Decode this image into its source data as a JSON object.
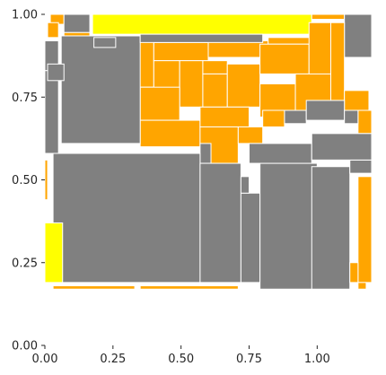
{
  "chart_data": {
    "type": "heatmap",
    "title": "",
    "xlabel": "",
    "ylabel": "",
    "xlim": [
      0,
      1.2
    ],
    "ylim": [
      0,
      1.0
    ],
    "x_ticks": [
      0.0,
      0.25,
      0.5,
      0.75,
      1.0
    ],
    "x_tick_labels": [
      "0.00",
      "0.25",
      "0.50",
      "0.75",
      "1.00"
    ],
    "y_ticks": [
      0.0,
      0.25,
      0.5,
      0.75,
      1.0
    ],
    "y_tick_labels": [
      "0.00",
      "0.25",
      "0.50",
      "0.75",
      "1.00"
    ],
    "grid": false,
    "legend": "none",
    "colors": {
      "gray": "#808080",
      "orange": "#FFA500",
      "yellow": "#FFFF00",
      "border": "#FFFFFF"
    },
    "regions": [
      {
        "c": "orange",
        "x0": 0.02,
        "x1": 0.07,
        "y0": 0.97,
        "y1": 1.0
      },
      {
        "c": "gray",
        "x0": 0.07,
        "x1": 0.165,
        "y0": 0.945,
        "y1": 1.0
      },
      {
        "c": "orange",
        "x0": 0.07,
        "x1": 0.165,
        "y0": 0.93,
        "y1": 0.945
      },
      {
        "c": "yellow",
        "x0": 0.175,
        "x1": 0.98,
        "y0": 0.94,
        "y1": 1.0
      },
      {
        "c": "orange",
        "x0": 0.98,
        "x1": 1.1,
        "y0": 0.985,
        "y1": 1.0
      },
      {
        "c": "gray",
        "x0": 1.1,
        "x1": 1.2,
        "y0": 0.87,
        "y1": 1.0
      },
      {
        "c": "orange",
        "x0": 0.01,
        "x1": 0.05,
        "y0": 0.93,
        "y1": 0.975
      },
      {
        "c": "orange",
        "x0": 0.16,
        "x1": 0.27,
        "y0": 0.78,
        "y1": 0.93
      },
      {
        "c": "orange",
        "x0": 0.27,
        "x1": 0.4,
        "y0": 0.78,
        "y1": 0.92
      },
      {
        "c": "orange",
        "x0": 0.4,
        "x1": 0.6,
        "y0": 0.86,
        "y1": 0.915
      },
      {
        "c": "orange",
        "x0": 0.6,
        "x1": 0.82,
        "y0": 0.87,
        "y1": 0.92
      },
      {
        "c": "orange",
        "x0": 0.82,
        "x1": 1.0,
        "y0": 0.91,
        "y1": 0.93
      },
      {
        "c": "orange",
        "x0": 0.4,
        "x1": 0.495,
        "y0": 0.72,
        "y1": 0.86
      },
      {
        "c": "orange",
        "x0": 0.495,
        "x1": 0.58,
        "y0": 0.72,
        "y1": 0.86
      },
      {
        "c": "orange",
        "x0": 0.58,
        "x1": 0.67,
        "y0": 0.82,
        "y1": 0.86
      },
      {
        "c": "orange",
        "x0": 0.58,
        "x1": 0.67,
        "y0": 0.72,
        "y1": 0.82
      },
      {
        "c": "orange",
        "x0": 0.67,
        "x1": 0.79,
        "y0": 0.72,
        "y1": 0.85
      },
      {
        "c": "orange",
        "x0": 0.79,
        "x1": 0.97,
        "y0": 0.82,
        "y1": 0.91
      },
      {
        "c": "orange",
        "x0": 0.97,
        "x1": 1.05,
        "y0": 0.72,
        "y1": 0.975
      },
      {
        "c": "orange",
        "x0": 1.05,
        "x1": 1.1,
        "y0": 0.74,
        "y1": 0.975
      },
      {
        "c": "orange",
        "x0": 0.35,
        "x1": 0.495,
        "y0": 0.68,
        "y1": 0.78
      },
      {
        "c": "orange",
        "x0": 0.35,
        "x1": 0.57,
        "y0": 0.6,
        "y1": 0.68
      },
      {
        "c": "orange",
        "x0": 0.57,
        "x1": 0.75,
        "y0": 0.66,
        "y1": 0.72
      },
      {
        "c": "orange",
        "x0": 0.79,
        "x1": 0.92,
        "y0": 0.69,
        "y1": 0.79
      },
      {
        "c": "orange",
        "x0": 0.92,
        "x1": 1.05,
        "y0": 0.7,
        "y1": 0.82
      },
      {
        "c": "orange",
        "x0": 0.57,
        "x1": 0.71,
        "y0": 0.55,
        "y1": 0.66
      },
      {
        "c": "orange",
        "x0": 0.71,
        "x1": 0.8,
        "y0": 0.61,
        "y1": 0.66
      },
      {
        "c": "orange",
        "x0": 0.8,
        "x1": 0.88,
        "y0": 0.66,
        "y1": 0.71
      },
      {
        "c": "orange",
        "x0": 1.1,
        "x1": 1.19,
        "y0": 0.71,
        "y1": 0.77
      },
      {
        "c": "orange",
        "x0": 1.15,
        "x1": 1.2,
        "y0": 0.64,
        "y1": 0.71
      },
      {
        "c": "gray",
        "x0": 0.06,
        "x1": 0.35,
        "y0": 0.61,
        "y1": 0.935
      },
      {
        "c": "gray",
        "x0": 0.35,
        "x1": 0.8,
        "y0": 0.915,
        "y1": 0.94
      },
      {
        "c": "gray",
        "x0": 0.18,
        "x1": 0.26,
        "y0": 0.9,
        "y1": 0.93
      },
      {
        "c": "gray",
        "x0": 0.0,
        "x1": 0.05,
        "y0": 0.83,
        "y1": 0.92
      },
      {
        "c": "gray",
        "x0": 0.0,
        "x1": 0.05,
        "y0": 0.58,
        "y1": 0.83
      },
      {
        "c": "gray",
        "x0": 0.01,
        "x1": 0.07,
        "y0": 0.8,
        "y1": 0.85
      },
      {
        "c": "gray",
        "x0": 0.88,
        "x1": 0.96,
        "y0": 0.67,
        "y1": 0.71
      },
      {
        "c": "gray",
        "x0": 0.96,
        "x1": 1.1,
        "y0": 0.68,
        "y1": 0.74
      },
      {
        "c": "gray",
        "x0": 1.1,
        "x1": 1.15,
        "y0": 0.67,
        "y1": 0.71
      },
      {
        "c": "gray",
        "x0": 0.57,
        "x1": 0.61,
        "y0": 0.55,
        "y1": 0.61
      },
      {
        "c": "gray",
        "x0": 0.03,
        "x1": 0.57,
        "y0": 0.19,
        "y1": 0.58
      },
      {
        "c": "gray",
        "x0": 0.57,
        "x1": 0.72,
        "y0": 0.19,
        "y1": 0.55
      },
      {
        "c": "gray",
        "x0": 0.72,
        "x1": 0.79,
        "y0": 0.19,
        "y1": 0.46
      },
      {
        "c": "gray",
        "x0": 0.72,
        "x1": 0.75,
        "y0": 0.46,
        "y1": 0.51
      },
      {
        "c": "gray",
        "x0": 0.79,
        "x1": 1.0,
        "y0": 0.17,
        "y1": 0.55
      },
      {
        "c": "gray",
        "x0": 0.75,
        "x1": 0.98,
        "y0": 0.55,
        "y1": 0.61
      },
      {
        "c": "gray",
        "x0": 0.98,
        "x1": 1.12,
        "y0": 0.17,
        "y1": 0.54
      },
      {
        "c": "gray",
        "x0": 1.12,
        "x1": 1.2,
        "y0": 0.52,
        "y1": 0.56
      },
      {
        "c": "gray",
        "x0": 0.98,
        "x1": 1.2,
        "y0": 0.56,
        "y1": 0.64
      },
      {
        "c": "orange",
        "x0": 1.15,
        "x1": 1.2,
        "y0": 0.19,
        "y1": 0.51
      },
      {
        "c": "orange",
        "x0": 1.12,
        "x1": 1.15,
        "y0": 0.19,
        "y1": 0.25
      },
      {
        "c": "orange",
        "x0": 0.0,
        "x1": 0.01,
        "y0": 0.44,
        "y1": 0.56
      },
      {
        "c": "yellow",
        "x0": 0.0,
        "x1": 0.065,
        "y0": 0.19,
        "y1": 0.37
      },
      {
        "c": "orange",
        "x0": 0.03,
        "x1": 0.33,
        "y0": 0.17,
        "y1": 0.18
      },
      {
        "c": "orange",
        "x0": 0.35,
        "x1": 0.71,
        "y0": 0.17,
        "y1": 0.18
      },
      {
        "c": "orange",
        "x0": 1.15,
        "x1": 1.18,
        "y0": 0.17,
        "y1": 0.19
      }
    ]
  }
}
